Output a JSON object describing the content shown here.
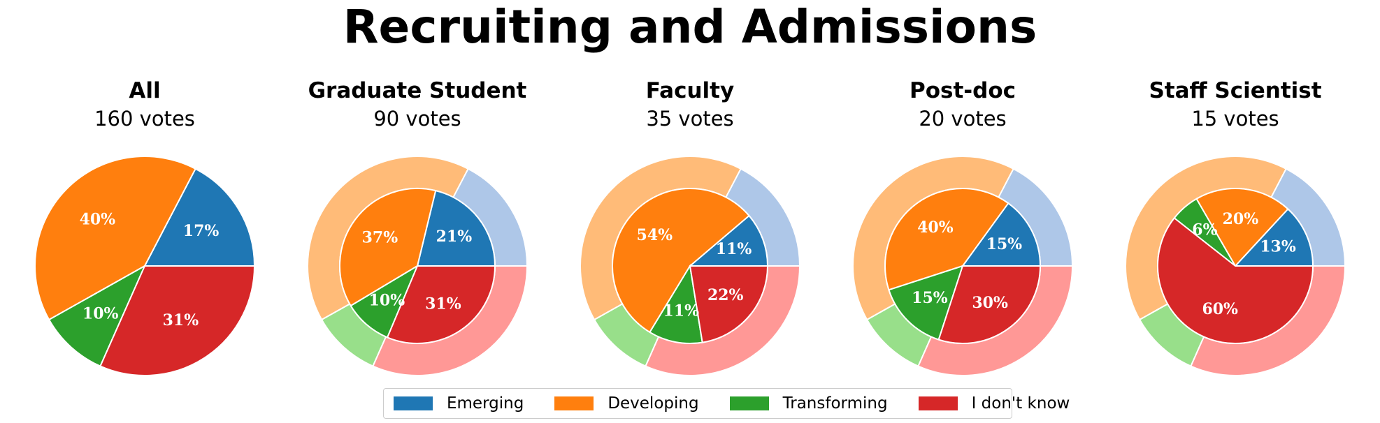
{
  "title": "Recruiting and Admissions",
  "legend": {
    "items": [
      {
        "label": "Emerging",
        "color": "#1f77b4"
      },
      {
        "label": "Developing",
        "color": "#ff7f0e"
      },
      {
        "label": "Transforming",
        "color": "#2ca02c"
      },
      {
        "label": "I don't know",
        "color": "#d62728"
      }
    ]
  },
  "chart_data": [
    {
      "type": "pie",
      "title": "All",
      "subtitle": "160 votes",
      "categories": [
        "Emerging",
        "Developing",
        "Transforming",
        "I don't know"
      ],
      "values": [
        17,
        40,
        10,
        31
      ],
      "labels": [
        "17%",
        "40%",
        "10%",
        "31%"
      ]
    },
    {
      "type": "pie",
      "title": "Graduate Student",
      "subtitle": "90 votes",
      "categories": [
        "Emerging",
        "Developing",
        "Transforming",
        "I don't know"
      ],
      "values": [
        21,
        37,
        10,
        31
      ],
      "labels": [
        "21%",
        "37%",
        "10%",
        "31%"
      ],
      "outer_ring_values": [
        17,
        40,
        10,
        31
      ]
    },
    {
      "type": "pie",
      "title": "Faculty",
      "subtitle": "35 votes",
      "categories": [
        "Emerging",
        "Developing",
        "Transforming",
        "I don't know"
      ],
      "values": [
        11,
        54,
        11,
        22
      ],
      "labels": [
        "11%",
        "54%",
        "11%",
        "22%"
      ],
      "outer_ring_values": [
        17,
        40,
        10,
        31
      ]
    },
    {
      "type": "pie",
      "title": "Post-doc",
      "subtitle": "20 votes",
      "categories": [
        "Emerging",
        "Developing",
        "Transforming",
        "I don't know"
      ],
      "values": [
        15,
        40,
        15,
        30
      ],
      "labels": [
        "15%",
        "40%",
        "15%",
        "30%"
      ],
      "outer_ring_values": [
        17,
        40,
        10,
        31
      ]
    },
    {
      "type": "pie",
      "title": "Staff Scientist",
      "subtitle": "15 votes",
      "categories": [
        "Emerging",
        "Developing",
        "Transforming",
        "I don't know"
      ],
      "values": [
        13,
        20,
        6,
        60
      ],
      "labels": [
        "13%",
        "20%",
        "6%",
        "60%"
      ],
      "outer_ring_values": [
        17,
        40,
        10,
        31
      ]
    }
  ],
  "colors": {
    "inner": [
      "#1f77b4",
      "#ff7f0e",
      "#2ca02c",
      "#d62728"
    ],
    "outer": [
      "#aec7e8",
      "#ffbb78",
      "#98df8a",
      "#ff9896"
    ]
  }
}
